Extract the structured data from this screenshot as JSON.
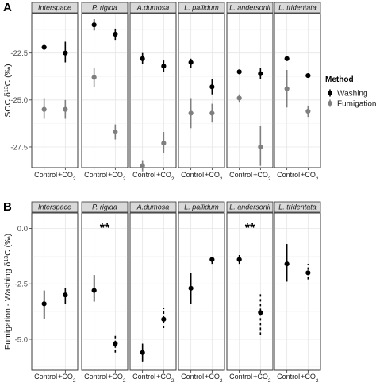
{
  "chart_data": [
    {
      "panel_tag": "A",
      "type": "scatter",
      "subtype": "point-range",
      "ylabel": "SOC δ13C (‰)",
      "ylabel_parts": [
        "SOC δ",
        "13",
        "C (‰)"
      ],
      "ylim": [
        -28.6,
        -20.4
      ],
      "y_ticks": [
        -22.5,
        -25.0,
        -27.5
      ],
      "y_tick_labels": [
        "-22.5",
        "-25.0",
        "-27.5"
      ],
      "x_categories": [
        "Control",
        "+CO2"
      ],
      "x_labels": {
        "control": "Control",
        "co2_main": "+CO",
        "co2_sub": "2"
      },
      "facets": [
        "Interspace",
        "P. rigida",
        "A.dumosa",
        "L. pallidum",
        "L. andersonii",
        "L. tridentata"
      ],
      "grid": true,
      "legend_placement": "right",
      "legend": {
        "title": "Method",
        "entries": [
          {
            "label": "Washing",
            "color": "#000000"
          },
          {
            "label": "Fumigation",
            "color": "#7f7f7f"
          }
        ]
      },
      "series": [
        {
          "name": "Washing",
          "color": "#000000",
          "points": [
            {
              "facet": 0,
              "x": "Control",
              "y": -22.2,
              "lo": -22.3,
              "hi": -22.1
            },
            {
              "facet": 0,
              "x": "+CO2",
              "y": -22.5,
              "lo": -23.0,
              "hi": -21.9
            },
            {
              "facet": 1,
              "x": "Control",
              "y": -21.0,
              "lo": -21.3,
              "hi": -20.7
            },
            {
              "facet": 1,
              "x": "+CO2",
              "y": -21.5,
              "lo": -21.8,
              "hi": -21.2
            },
            {
              "facet": 2,
              "x": "Control",
              "y": -22.8,
              "lo": -23.1,
              "hi": -22.5
            },
            {
              "facet": 2,
              "x": "+CO2",
              "y": -23.2,
              "lo": -23.5,
              "hi": -22.9
            },
            {
              "facet": 3,
              "x": "Control",
              "y": -23.0,
              "lo": -23.3,
              "hi": -22.8
            },
            {
              "facet": 3,
              "x": "+CO2",
              "y": -24.3,
              "lo": -24.7,
              "hi": -23.9
            },
            {
              "facet": 4,
              "x": "Control",
              "y": -23.5,
              "lo": -23.5,
              "hi": -23.5
            },
            {
              "facet": 4,
              "x": "+CO2",
              "y": -23.6,
              "lo": -23.9,
              "hi": -23.3
            },
            {
              "facet": 5,
              "x": "Control",
              "y": -22.8,
              "lo": -22.8,
              "hi": -22.8
            },
            {
              "facet": 5,
              "x": "+CO2",
              "y": -23.7,
              "lo": -23.7,
              "hi": -23.7
            }
          ]
        },
        {
          "name": "Fumigation",
          "color": "#7f7f7f",
          "points": [
            {
              "facet": 0,
              "x": "Control",
              "y": -25.5,
              "lo": -26.0,
              "hi": -24.9
            },
            {
              "facet": 0,
              "x": "+CO2",
              "y": -25.5,
              "lo": -26.0,
              "hi": -25.0
            },
            {
              "facet": 1,
              "x": "Control",
              "y": -23.8,
              "lo": -24.3,
              "hi": -23.3
            },
            {
              "facet": 1,
              "x": "+CO2",
              "y": -26.7,
              "lo": -27.1,
              "hi": -26.3
            },
            {
              "facet": 2,
              "x": "Control",
              "y": -28.5,
              "lo": -28.8,
              "hi": -28.2
            },
            {
              "facet": 2,
              "x": "+CO2",
              "y": -27.3,
              "lo": -27.8,
              "hi": -26.7
            },
            {
              "facet": 3,
              "x": "Control",
              "y": -25.7,
              "lo": -26.5,
              "hi": -24.9
            },
            {
              "facet": 3,
              "x": "+CO2",
              "y": -25.7,
              "lo": -26.2,
              "hi": -25.2
            },
            {
              "facet": 4,
              "x": "Control",
              "y": -24.9,
              "lo": -25.1,
              "hi": -24.7
            },
            {
              "facet": 4,
              "x": "+CO2",
              "y": -27.5,
              "lo": -28.5,
              "hi": -26.4
            },
            {
              "facet": 5,
              "x": "Control",
              "y": -24.4,
              "lo": -25.4,
              "hi": -23.4
            },
            {
              "facet": 5,
              "x": "+CO2",
              "y": -25.6,
              "lo": -25.9,
              "hi": -25.3
            }
          ]
        }
      ]
    },
    {
      "panel_tag": "B",
      "type": "scatter",
      "subtype": "point-range",
      "ylabel": "Fumigation - Washing δ13C (‰)",
      "ylabel_parts": [
        "Fumigation - Washing δ",
        "13",
        "C (‰)"
      ],
      "ylim": [
        -6.4,
        0.7
      ],
      "y_ticks": [
        0.0,
        -2.5,
        -5.0
      ],
      "y_tick_labels": [
        "0.0",
        "-2.5",
        "-5.0"
      ],
      "x_categories": [
        "Control",
        "+CO2"
      ],
      "x_labels": {
        "control": "Control",
        "co2_main": "+CO",
        "co2_sub": "2"
      },
      "facets": [
        "Interspace",
        "P. rigida",
        "A.dumosa",
        "L. pallidum",
        "L. andersonii",
        "L. tridentata"
      ],
      "grid": true,
      "significance": [
        {
          "facet": 1,
          "label": "**"
        },
        {
          "facet": 4,
          "label": "**"
        }
      ],
      "series": [
        {
          "name": "",
          "color": "#000000",
          "points": [
            {
              "facet": 0,
              "x": "Control",
              "y": -3.4,
              "lo": -4.1,
              "hi": -2.8,
              "dashed": false
            },
            {
              "facet": 0,
              "x": "+CO2",
              "y": -3.0,
              "lo": -3.4,
              "hi": -2.7,
              "dashed": false
            },
            {
              "facet": 1,
              "x": "Control",
              "y": -2.8,
              "lo": -3.3,
              "hi": -2.1,
              "dashed": false
            },
            {
              "facet": 1,
              "x": "+CO2",
              "y": -5.2,
              "lo": -5.6,
              "hi": -4.8,
              "dashed": true
            },
            {
              "facet": 2,
              "x": "Control",
              "y": -5.6,
              "lo": -6.0,
              "hi": -5.2,
              "dashed": false
            },
            {
              "facet": 2,
              "x": "+CO2",
              "y": -4.1,
              "lo": -4.5,
              "hi": -3.6,
              "dashed": true
            },
            {
              "facet": 3,
              "x": "Control",
              "y": -2.7,
              "lo": -3.4,
              "hi": -2.0,
              "dashed": false
            },
            {
              "facet": 3,
              "x": "+CO2",
              "y": -1.4,
              "lo": -1.6,
              "hi": -1.2,
              "dashed": true
            },
            {
              "facet": 4,
              "x": "Control",
              "y": -1.4,
              "lo": -1.6,
              "hi": -1.2,
              "dashed": false
            },
            {
              "facet": 4,
              "x": "+CO2",
              "y": -3.8,
              "lo": -4.8,
              "hi": -2.9,
              "dashed": true
            },
            {
              "facet": 5,
              "x": "Control",
              "y": -1.6,
              "lo": -2.4,
              "hi": -0.7,
              "dashed": false
            },
            {
              "facet": 5,
              "x": "+CO2",
              "y": -2.0,
              "lo": -2.3,
              "hi": -1.6,
              "dashed": true
            }
          ]
        }
      ]
    }
  ]
}
